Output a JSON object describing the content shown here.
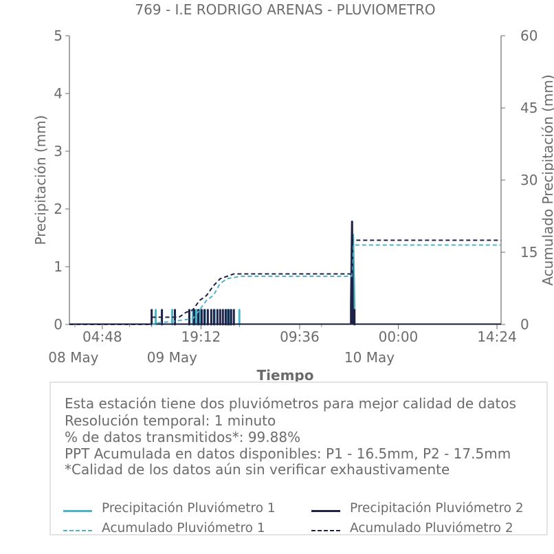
{
  "chart_data": {
    "type": "line",
    "title": "769 - I.E RODRIGO ARENAS - PLUVIOMETRO",
    "xlabel": "Tiempo",
    "ylabel": "Precipitación (mm)",
    "y2label": "Acumulado Precipitación (mm)",
    "ylim": [
      0,
      5
    ],
    "y2lim": [
      0,
      60
    ],
    "yticks": [
      "0",
      "1",
      "2",
      "3",
      "4",
      "5"
    ],
    "y2ticks": [
      "0",
      "15",
      "30",
      "45",
      "60"
    ],
    "xlim_hours": [
      0,
      63
    ],
    "xticks": [
      {
        "label": "04:48",
        "date": "08 May",
        "h": 4.8
      },
      {
        "label": "19:12",
        "date": "09 May",
        "h": 19.2
      },
      {
        "label": "09:36",
        "date": "",
        "h": 33.6
      },
      {
        "label": "00:00",
        "date": "10 May",
        "h": 48.0
      },
      {
        "label": "14:24",
        "date": "",
        "h": 62.4
      }
    ],
    "xticks_full": [
      "04:48\n08 May",
      "19:12\n09 May",
      "09:36",
      "00:00\n10 May",
      "14:24"
    ],
    "series": [
      {
        "name": "Precipitación Pluviómetro 1",
        "axis": "left",
        "style": "solid",
        "color": "#4cb4c8",
        "spikes": [
          [
            12.6,
            0.25
          ],
          [
            15.0,
            0.25
          ],
          [
            18.0,
            0.25
          ],
          [
            18.5,
            0.25
          ],
          [
            19.0,
            0.25
          ],
          [
            19.8,
            0.25
          ],
          [
            21.2,
            0.25
          ],
          [
            23.0,
            0.25
          ],
          [
            23.4,
            0.25
          ],
          [
            24.8,
            0.25
          ]
        ],
        "points": [
          [
            41.2,
            0.3
          ],
          [
            41.4,
            1.55
          ],
          [
            41.6,
            0.3
          ]
        ]
      },
      {
        "name": "Precipitación Pluviómetro 2",
        "axis": "left",
        "style": "solid",
        "color": "#1e2246",
        "spikes": [
          [
            12.0,
            0.25
          ],
          [
            13.5,
            0.25
          ],
          [
            15.4,
            0.25
          ],
          [
            17.5,
            0.25
          ],
          [
            18.2,
            0.25
          ],
          [
            18.8,
            0.25
          ],
          [
            19.3,
            0.25
          ],
          [
            19.7,
            0.25
          ],
          [
            20.2,
            0.25
          ],
          [
            20.7,
            0.25
          ],
          [
            21.1,
            0.25
          ],
          [
            21.6,
            0.25
          ],
          [
            22.0,
            0.25
          ],
          [
            22.4,
            0.25
          ],
          [
            22.8,
            0.25
          ],
          [
            23.2,
            0.25
          ],
          [
            23.6,
            0.25
          ],
          [
            24.0,
            0.25
          ],
          [
            41.6,
            0.25
          ]
        ],
        "points": [
          [
            41.1,
            0.3
          ],
          [
            41.25,
            1.78
          ],
          [
            41.35,
            0.3
          ]
        ]
      },
      {
        "name": "Acumulado Pluviómetro 1",
        "axis": "right",
        "style": "dashed",
        "color": "#4cb4c8",
        "points": [
          [
            0,
            0
          ],
          [
            12.6,
            0
          ],
          [
            12.6,
            0.3
          ],
          [
            15.0,
            0.6
          ],
          [
            18.0,
            1.2
          ],
          [
            19.0,
            3.0
          ],
          [
            20.0,
            5.0
          ],
          [
            21.0,
            6.0
          ],
          [
            22.0,
            8.5
          ],
          [
            23.0,
            9.5
          ],
          [
            25.0,
            10.0
          ],
          [
            41.2,
            10.0
          ],
          [
            41.4,
            16.5
          ],
          [
            63,
            16.5
          ]
        ]
      },
      {
        "name": "Acumulado Pluviómetro 2",
        "axis": "right",
        "style": "dashed",
        "color": "#1e2246",
        "points": [
          [
            0,
            0
          ],
          [
            12.0,
            0
          ],
          [
            12.0,
            1.5
          ],
          [
            16.0,
            1.5
          ],
          [
            17.0,
            2.5
          ],
          [
            18.0,
            3.0
          ],
          [
            19.0,
            5.0
          ],
          [
            20.0,
            6.0
          ],
          [
            21.0,
            8.0
          ],
          [
            22.0,
            9.5
          ],
          [
            23.0,
            10.0
          ],
          [
            24.0,
            10.5
          ],
          [
            41.1,
            10.5
          ],
          [
            41.3,
            17.5
          ],
          [
            63,
            17.5
          ]
        ]
      }
    ]
  },
  "info": {
    "lines": [
      "Esta estación tiene dos pluviómetros para mejor calidad de datos",
      "Resolución temporal: 1 minuto",
      "% de datos transmitidos*: 99.88%",
      "PPT Acumulada en datos disponibles: P1 - 16.5mm, P2 - 17.5mm",
      "*Calidad de los datos aún sin verificar exhaustivamente"
    ]
  },
  "legend": [
    {
      "label": "Precipitación Pluviómetro 1",
      "color": "#4cb4c8",
      "style": "solid"
    },
    {
      "label": "Precipitación Pluviómetro 2",
      "color": "#1e2246",
      "style": "solid"
    },
    {
      "label": "Acumulado Pluviómetro 1",
      "color": "#4cb4c8",
      "style": "dashed"
    },
    {
      "label": "Acumulado Pluviómetro 2",
      "color": "#1e2246",
      "style": "dashed"
    }
  ]
}
